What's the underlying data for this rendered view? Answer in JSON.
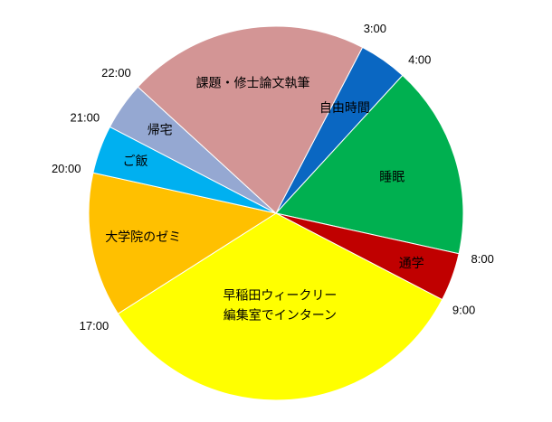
{
  "chart_data": {
    "type": "pie",
    "title": "",
    "slices": [
      {
        "label": "自由時間",
        "start": "3:00",
        "end": "4:00",
        "hours": 1,
        "color": "#0a67c2"
      },
      {
        "label": "睡眠",
        "start": "4:00",
        "end": "8:00",
        "hours": 4,
        "color": "#00b050"
      },
      {
        "label": "通学",
        "start": "8:00",
        "end": "9:00",
        "hours": 1,
        "color": "#c00000"
      },
      {
        "label": [
          "早稲田ウィークリー",
          "編集室でインターン"
        ],
        "start": "9:00",
        "end": "17:00",
        "hours": 8,
        "color": "#ffff00"
      },
      {
        "label": "大学院のゼミ",
        "start": "17:00",
        "end": "20:00",
        "hours": 3,
        "color": "#ffc000"
      },
      {
        "label": "ご飯",
        "start": "20:00",
        "end": "21:00",
        "hours": 1,
        "color": "#00b0f0"
      },
      {
        "label": "帰宅",
        "start": "21:00",
        "end": "22:00",
        "hours": 1,
        "color": "#95a8d2"
      },
      {
        "label": "課題・修士論文執筆",
        "start": "22:00",
        "end": "3:00",
        "hours": 5,
        "color": "#d39595"
      }
    ],
    "time_labels": [
      "3:00",
      "4:00",
      "8:00",
      "9:00",
      "17:00",
      "20:00",
      "21:00",
      "22:00"
    ]
  }
}
